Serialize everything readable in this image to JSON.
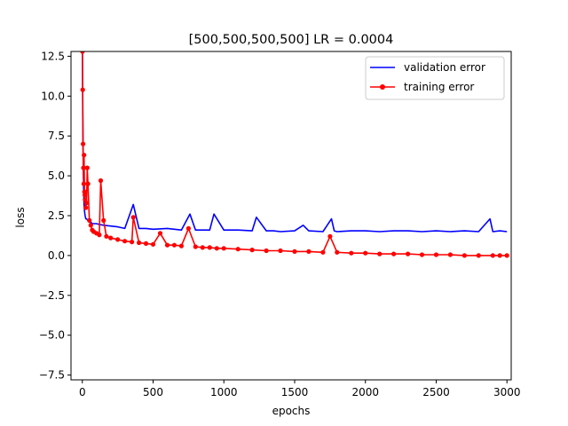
{
  "chart_data": {
    "type": "line",
    "title": "[500,500,500,500] LR = 0.0004",
    "xlabel": "epochs",
    "ylabel": "loss",
    "xlim": [
      -80,
      3030
    ],
    "ylim": [
      -7.8,
      12.8
    ],
    "xticks": [
      0,
      500,
      1000,
      1500,
      2000,
      2500,
      3000
    ],
    "yticks": [
      -7.5,
      -5.0,
      -2.5,
      0.0,
      2.5,
      5.0,
      7.5,
      10.0,
      12.5
    ],
    "xtick_labels": [
      "0",
      "500",
      "1000",
      "1500",
      "2000",
      "2500",
      "3000"
    ],
    "ytick_labels": [
      "−7.5",
      "−5.0",
      "−2.5",
      "0.0",
      "2.5",
      "5.0",
      "7.5",
      "10.0",
      "12.5"
    ],
    "grid": false,
    "legend_position": "top-right",
    "series": [
      {
        "name": "validation error",
        "color": "#0000ff",
        "marker": "none",
        "x": [
          1,
          3,
          5,
          8,
          10,
          12,
          15,
          20,
          25,
          30,
          40,
          50,
          60,
          70,
          80,
          100,
          120,
          150,
          200,
          250,
          300,
          360,
          400,
          450,
          500,
          600,
          700,
          760,
          800,
          900,
          930,
          1000,
          1050,
          1100,
          1200,
          1230,
          1300,
          1350,
          1400,
          1500,
          1560,
          1600,
          1700,
          1760,
          1780,
          1800,
          1900,
          2000,
          2100,
          2200,
          2300,
          2400,
          2500,
          2600,
          2700,
          2800,
          2880,
          2900,
          2950,
          3000
        ],
        "y": [
          12.8,
          9.0,
          6.5,
          4.8,
          3.8,
          3.2,
          2.8,
          2.5,
          2.3,
          2.3,
          2.2,
          2.2,
          2.1,
          2.0,
          2.0,
          2.0,
          1.95,
          1.9,
          1.85,
          1.8,
          1.7,
          3.2,
          1.7,
          1.7,
          1.65,
          1.7,
          1.6,
          2.6,
          1.6,
          1.6,
          2.6,
          1.6,
          1.6,
          1.6,
          1.55,
          2.4,
          1.55,
          1.55,
          1.5,
          1.55,
          1.9,
          1.55,
          1.5,
          2.3,
          1.55,
          1.5,
          1.55,
          1.55,
          1.5,
          1.55,
          1.55,
          1.5,
          1.55,
          1.5,
          1.55,
          1.5,
          2.3,
          1.5,
          1.55,
          1.5
        ]
      },
      {
        "name": "training error",
        "color": "#ff0000",
        "marker": "circle",
        "x": [
          1,
          3,
          5,
          8,
          10,
          12,
          15,
          18,
          20,
          25,
          30,
          35,
          40,
          50,
          60,
          70,
          80,
          100,
          120,
          130,
          150,
          170,
          200,
          250,
          300,
          350,
          360,
          400,
          450,
          500,
          550,
          600,
          650,
          700,
          750,
          800,
          850,
          900,
          950,
          1000,
          1100,
          1200,
          1300,
          1400,
          1500,
          1600,
          1700,
          1750,
          1800,
          1900,
          2000,
          2100,
          2200,
          2300,
          2400,
          2500,
          2600,
          2700,
          2800,
          2900,
          2950,
          3000
        ],
        "y": [
          12.8,
          10.4,
          7.0,
          5.5,
          4.5,
          6.3,
          4.0,
          3.8,
          3.5,
          3.0,
          3.3,
          5.5,
          4.5,
          2.2,
          1.9,
          1.6,
          1.5,
          1.4,
          1.3,
          4.7,
          2.2,
          1.2,
          1.1,
          1.0,
          0.9,
          0.85,
          2.4,
          0.8,
          0.75,
          0.7,
          1.4,
          0.65,
          0.65,
          0.6,
          1.7,
          0.55,
          0.5,
          0.5,
          0.45,
          0.45,
          0.4,
          0.35,
          0.3,
          0.3,
          0.25,
          0.25,
          0.2,
          1.2,
          0.2,
          0.15,
          0.15,
          0.1,
          0.1,
          0.1,
          0.05,
          0.05,
          0.05,
          0.0,
          0.0,
          0.0,
          0.0,
          0.0
        ]
      }
    ]
  }
}
